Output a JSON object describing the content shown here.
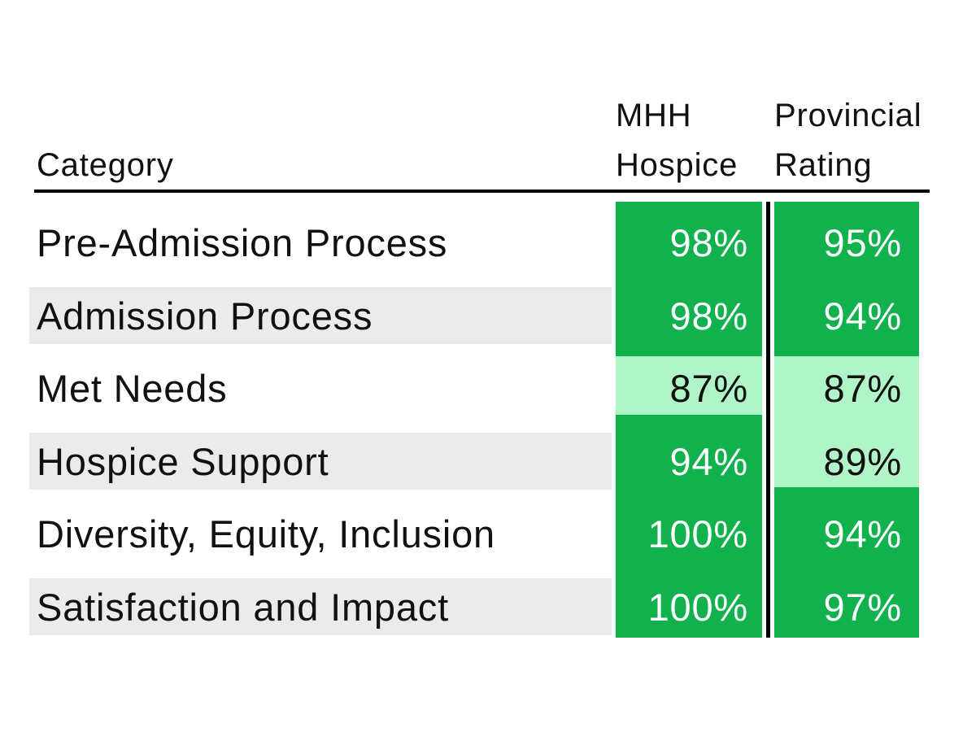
{
  "header": {
    "category": "Category",
    "mhh": [
      "MHH",
      "Hospice"
    ],
    "provincial": [
      "Provincial",
      "Rating"
    ]
  },
  "rows": [
    {
      "category": "Pre-Admission Process",
      "mhh": "98%",
      "provincial": "95%",
      "mhh_low": false,
      "provincial_low": false
    },
    {
      "category": "Admission Process",
      "mhh": "98%",
      "provincial": "94%",
      "mhh_low": false,
      "provincial_low": false
    },
    {
      "category": "Met Needs",
      "mhh": "87%",
      "provincial": "87%",
      "mhh_low": true,
      "provincial_low": true
    },
    {
      "category": "Hospice Support",
      "mhh": "94%",
      "provincial": "89%",
      "mhh_low": false,
      "provincial_low": true
    },
    {
      "category": "Diversity, Equity, Inclusion",
      "mhh": "100%",
      "provincial": "94%",
      "mhh_low": false,
      "provincial_low": false
    },
    {
      "category": "Satisfaction and Impact",
      "mhh": "100%",
      "provincial": "97%",
      "mhh_low": false,
      "provincial_low": false
    }
  ],
  "colors": {
    "dark_green": "#11b14e",
    "light_green": "#aff5c8",
    "stripe_gray": "#ebebeb",
    "text": "#111111",
    "divider": "#000000"
  },
  "chart_data": {
    "type": "table",
    "title": "",
    "columns": [
      "Category",
      "MHH Hospice",
      "Provincial Rating"
    ],
    "rows": [
      [
        "Pre-Admission Process",
        98,
        95
      ],
      [
        "Admission Process",
        98,
        94
      ],
      [
        "Met Needs",
        87,
        87
      ],
      [
        "Hospice Support",
        94,
        89
      ],
      [
        "Diversity, Equity, Inclusion",
        100,
        94
      ],
      [
        "Satisfaction and Impact",
        100,
        97
      ]
    ],
    "units": "percent",
    "layout_hints": {
      "zebra_striping": "even data rows shaded light gray",
      "value_highlight": "values below 90% rendered on light green with dark text; all other values on dark green with white text",
      "column_divider": "black vertical bar between the two rating columns",
      "header_rule": "black horizontal rule under the header row"
    }
  }
}
